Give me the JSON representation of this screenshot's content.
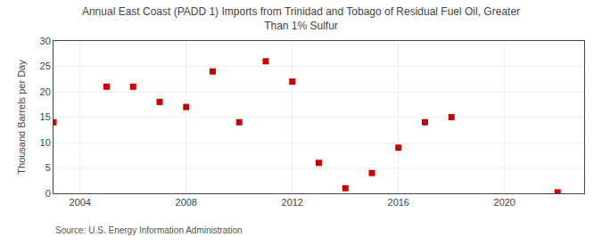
{
  "chart_data": {
    "type": "scatter",
    "title": "Annual East Coast (PADD 1) Imports from Trinidad and Tobago of Residual Fuel Oil, Greater\nThan 1% Sulfur",
    "ylabel": "Thousand Barrels per Day",
    "annotations": [
      "Source: U.S. Energy Information Administration"
    ],
    "x": [
      2003,
      2005,
      2006,
      2007,
      2008,
      2009,
      2010,
      2011,
      2012,
      2013,
      2014,
      2015,
      2016,
      2017,
      2018,
      2022
    ],
    "values": [
      14.0,
      21.0,
      21.0,
      18.0,
      17.0,
      24.0,
      14.0,
      26.0,
      22.0,
      6.0,
      1.0,
      4.0,
      9.0,
      14.0,
      15.0,
      0.2
    ],
    "color": "#cc0000",
    "marker": "square",
    "xlim": [
      2003,
      2023
    ],
    "ylim": [
      0,
      30
    ],
    "xticks": [
      2004,
      2008,
      2012,
      2016,
      2020
    ],
    "yticks": [
      0,
      5,
      10,
      15,
      20,
      25,
      30
    ],
    "grid": true
  }
}
